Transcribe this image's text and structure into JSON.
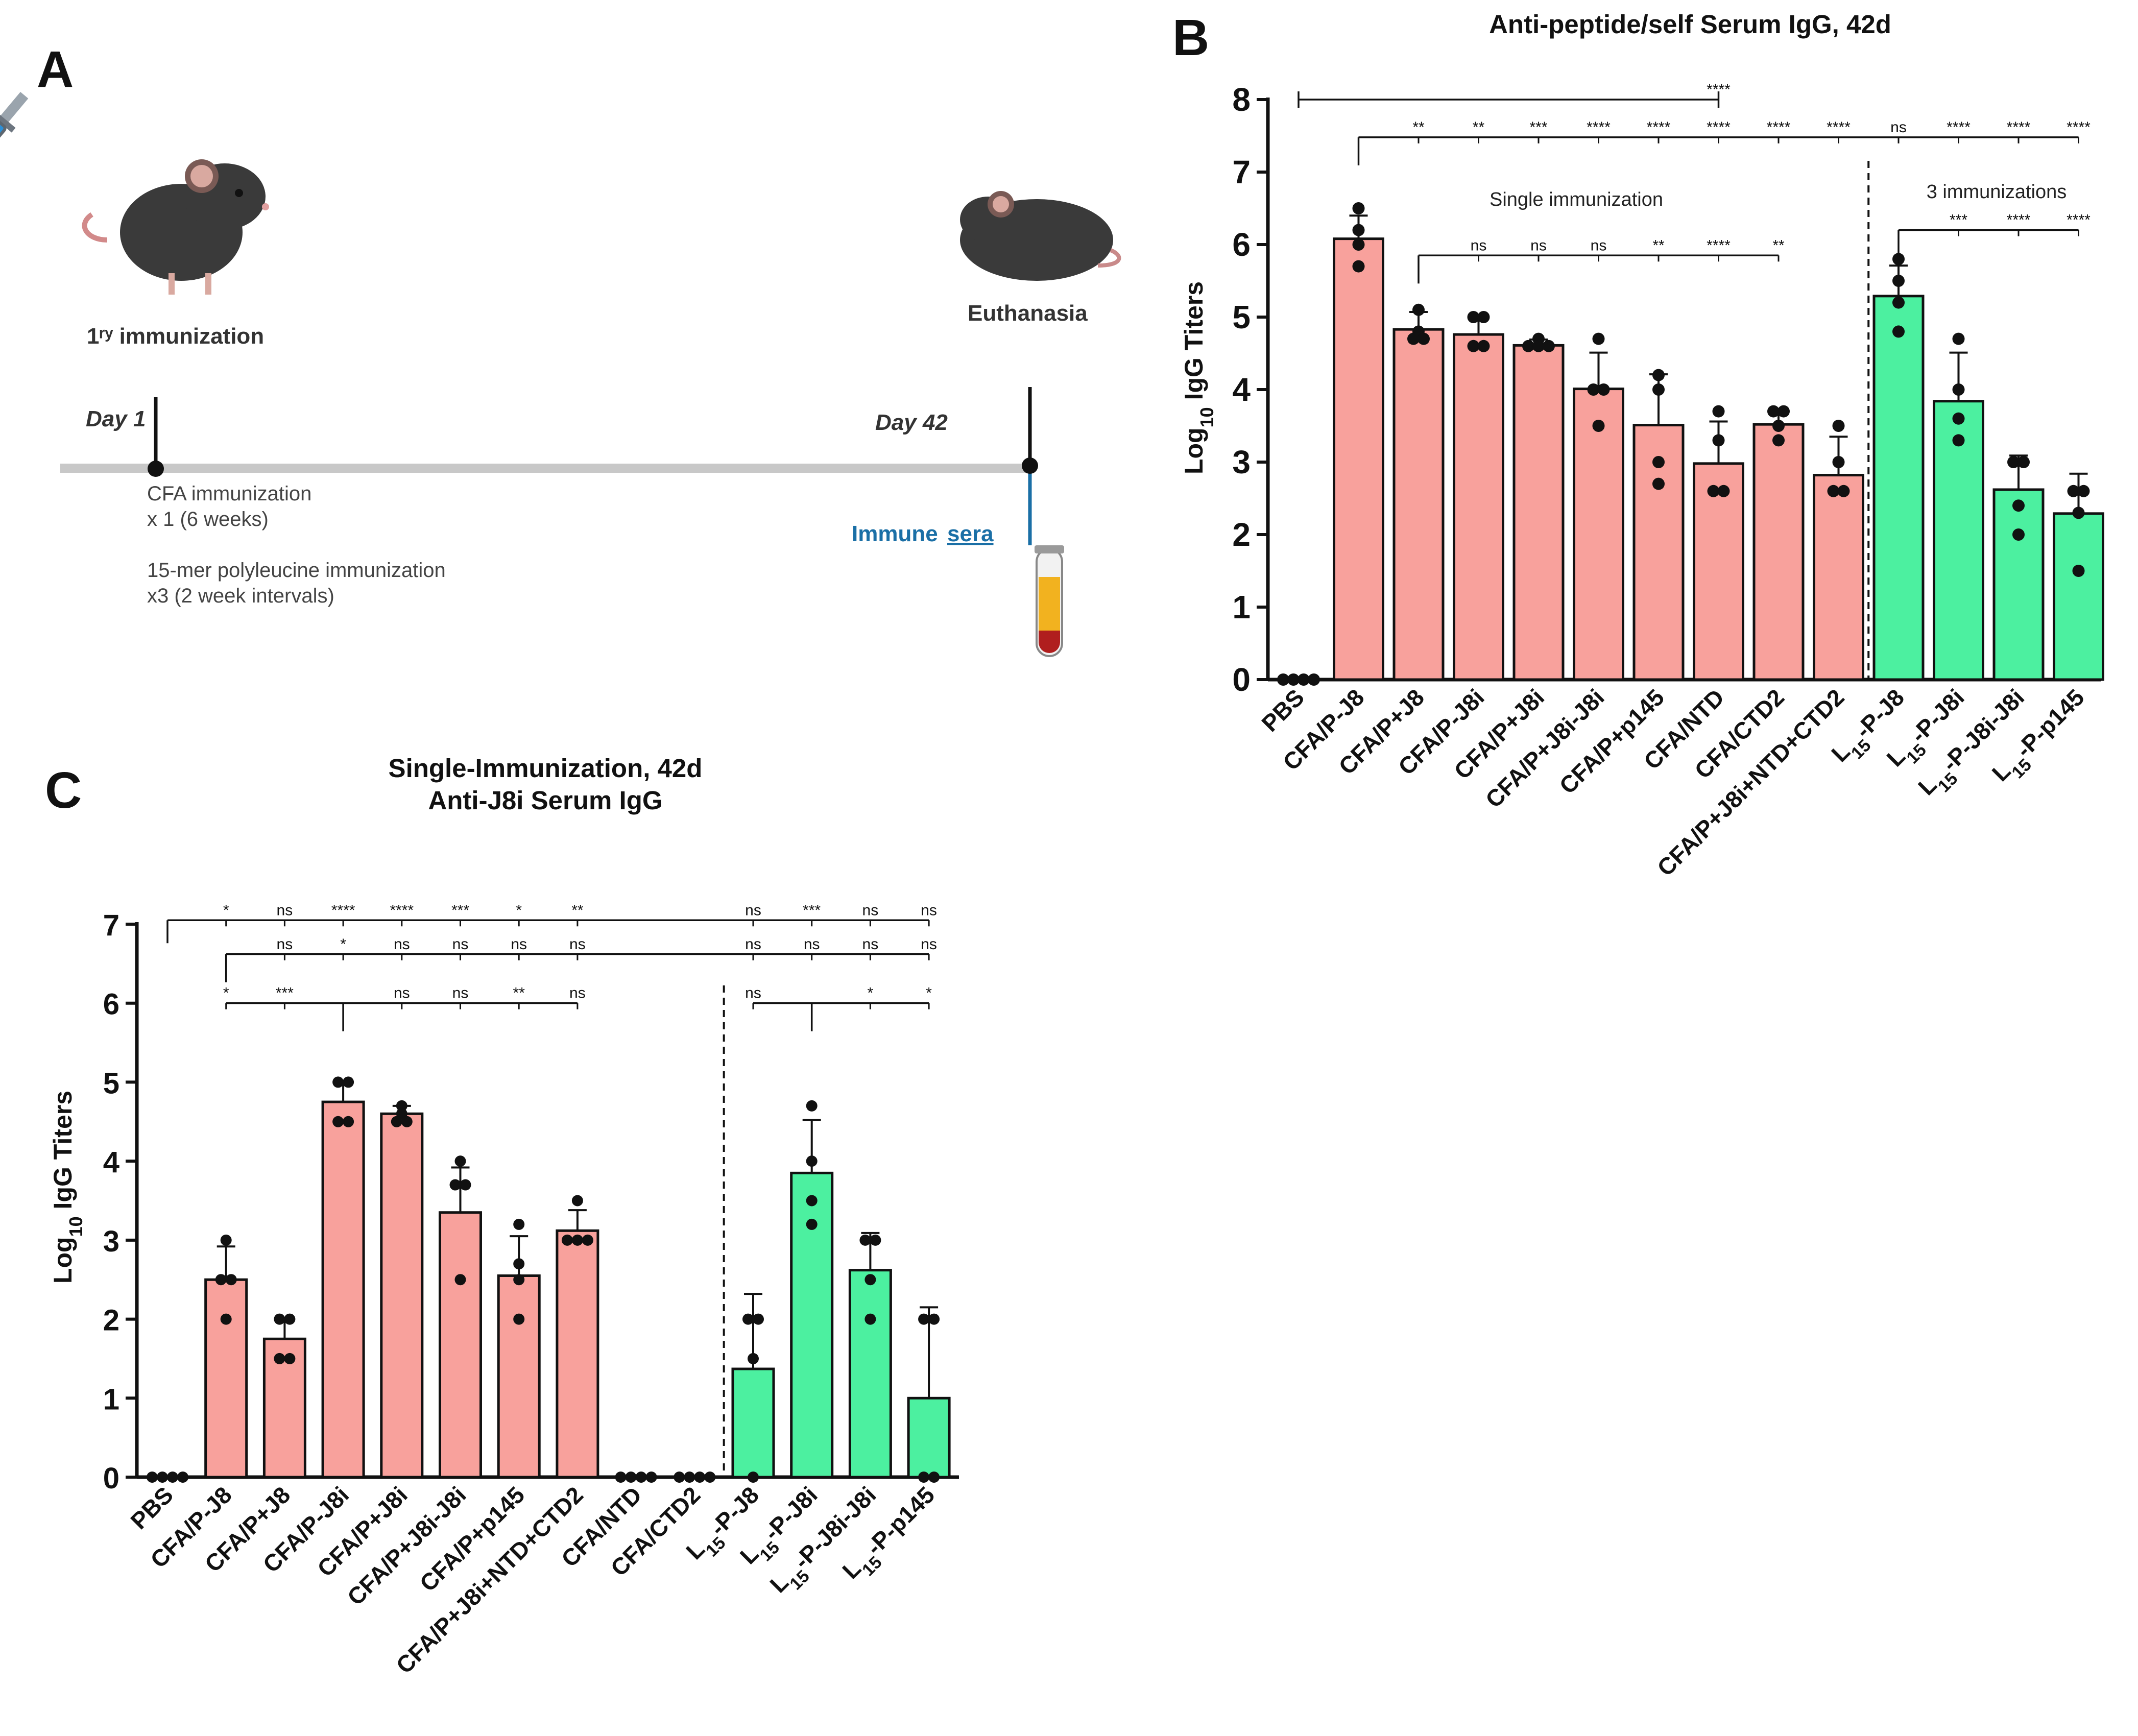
{
  "panel_a": {
    "letter": "A",
    "primary_immunization_label": "1ʳʸ immunization",
    "euthanasia_label": "Euthanasia",
    "day1_label": "Day 1",
    "day42_label": "Day 42",
    "cfa_line1": "CFA immunization",
    "cfa_line2": "x 1 (6 weeks)",
    "poly_line1": "15-mer polyleucine immunization",
    "poly_line2": "x3 (2 week intervals)",
    "immune_label": "Immune",
    "sera_label": "sera",
    "timeline_color": "#c8c8c8",
    "sera_color": "#1a6fa6"
  },
  "colors": {
    "red_bar": "#f8a19c",
    "green_bar": "#4cf0a0",
    "text": "#111111"
  },
  "chart_data": [
    {
      "panel": "B",
      "type": "bar",
      "title": "Anti-peptide/self Serum IgG, 42d",
      "ylabel_prefix": "Log",
      "ylabel_sub": "10",
      "ylabel_suffix": " IgG Titers",
      "ylim": [
        0,
        8
      ],
      "yticks": [
        "0",
        "1",
        "2",
        "3",
        "4",
        "5",
        "6",
        "7",
        "8"
      ],
      "categories": [
        "PBS",
        "CFA/P-J8",
        "CFA/P+J8",
        "CFA/P-J8i",
        "CFA/P+J8i",
        "CFA/P+J8i-J8i",
        "CFA/P+p145",
        "CFA/NTD",
        "CFA/CTD2",
        "CFA/P+J8i+NTD+CTD2",
        "L15-P-J8",
        "L15-P-J8i",
        "L15-P-J8i-J8i",
        "L15-P-p145"
      ],
      "values": [
        0,
        6.08,
        4.83,
        4.76,
        4.61,
        4.01,
        3.51,
        2.98,
        3.52,
        2.82,
        5.29,
        3.84,
        2.62,
        2.29
      ],
      "errors": [
        0,
        0.32,
        0.24,
        0.25,
        0.08,
        0.5,
        0.7,
        0.58,
        0.18,
        0.53,
        0.42,
        0.67,
        0.47,
        0.55
      ],
      "groups": [
        "none",
        "red",
        "red",
        "red",
        "red",
        "red",
        "red",
        "red",
        "red",
        "red",
        "green",
        "green",
        "green",
        "green"
      ],
      "points": [
        [
          0,
          0,
          0,
          0
        ],
        [
          6.5,
          6.2,
          6.0,
          5.7
        ],
        [
          5.1,
          4.8,
          4.7,
          4.7
        ],
        [
          5.0,
          5.0,
          4.6,
          4.6
        ],
        [
          4.7,
          4.6,
          4.6,
          4.6
        ],
        [
          4.7,
          4.0,
          4.0,
          3.5
        ],
        [
          4.2,
          4.0,
          3.0,
          2.7
        ],
        [
          3.7,
          3.3,
          2.6,
          2.6
        ],
        [
          3.7,
          3.7,
          3.5,
          3.3
        ],
        [
          3.5,
          3.0,
          2.6,
          2.6
        ],
        [
          5.8,
          5.5,
          5.2,
          4.8
        ],
        [
          4.7,
          4.0,
          3.6,
          3.3
        ],
        [
          3.0,
          3.0,
          2.4,
          2.0
        ],
        [
          2.6,
          2.6,
          2.3,
          1.5
        ]
      ],
      "divider_after_index": 9,
      "annotations": [
        "Single immunization",
        "3 immunizations"
      ],
      "sig_rows": [
        {
          "level": 8.0,
          "anchor": 0,
          "marks": [
            [
              7,
              "****"
            ]
          ],
          "style": "span"
        },
        {
          "level": 7.48,
          "anchor": 1,
          "marks": [
            [
              2,
              "**"
            ],
            [
              3,
              "**"
            ],
            [
              4,
              "***"
            ],
            [
              5,
              "****"
            ],
            [
              6,
              "****"
            ],
            [
              7,
              "****"
            ],
            [
              8,
              "****"
            ],
            [
              9,
              "****"
            ],
            [
              10,
              "ns"
            ],
            [
              11,
              "****"
            ],
            [
              12,
              "****"
            ],
            [
              13,
              "****"
            ]
          ]
        },
        {
          "level": 5.85,
          "anchor": 2,
          "marks": [
            [
              3,
              "ns"
            ],
            [
              4,
              "ns"
            ],
            [
              5,
              "ns"
            ],
            [
              6,
              "**"
            ],
            [
              7,
              "****"
            ],
            [
              8,
              "**"
            ]
          ]
        },
        {
          "level": 6.2,
          "anchor": 10,
          "marks": [
            [
              11,
              "***"
            ],
            [
              12,
              "****"
            ],
            [
              13,
              "****"
            ]
          ]
        }
      ]
    },
    {
      "panel": "C",
      "type": "bar",
      "title_line1": "Single-Immunization, 42d",
      "title_line2": "Anti-J8i Serum IgG",
      "ylabel_prefix": "Log",
      "ylabel_sub": "10",
      "ylabel_suffix": " IgG Titers",
      "ylim": [
        0,
        7
      ],
      "yticks": [
        "0",
        "1",
        "2",
        "3",
        "4",
        "5",
        "6",
        "7"
      ],
      "categories": [
        "PBS",
        "CFA/P-J8",
        "CFA/P+J8",
        "CFA/P-J8i",
        "CFA/P+J8i",
        "CFA/P+J8i-J8i",
        "CFA/P+p145",
        "CFA/P+J8i+NTD+CTD2",
        "CFA/NTD",
        "CFA/CTD2",
        "L15-P-J8",
        "L15-P-J8i",
        "L15-P-J8i-J8i",
        "L15-P-p145"
      ],
      "values": [
        0,
        2.5,
        1.75,
        4.75,
        4.6,
        3.35,
        2.55,
        3.12,
        0,
        0,
        1.37,
        3.85,
        2.62,
        1.0
      ],
      "errors": [
        0,
        0.42,
        0.25,
        0.25,
        0.1,
        0.57,
        0.5,
        0.26,
        0,
        0,
        0.95,
        0.67,
        0.47,
        1.15
      ],
      "groups": [
        "none",
        "red",
        "red",
        "red",
        "red",
        "red",
        "red",
        "red",
        "none",
        "none",
        "green",
        "green",
        "green",
        "green"
      ],
      "points": [
        [
          0,
          0,
          0,
          0
        ],
        [
          3.0,
          2.5,
          2.5,
          2.0
        ],
        [
          2.0,
          2.0,
          1.5,
          1.5
        ],
        [
          5.0,
          5.0,
          4.5,
          4.5
        ],
        [
          4.7,
          4.6,
          4.5,
          4.5
        ],
        [
          4.0,
          3.7,
          3.7,
          2.5
        ],
        [
          3.2,
          2.7,
          2.5,
          2.0
        ],
        [
          3.5,
          3.0,
          3.0,
          3.0
        ],
        [
          0,
          0,
          0,
          0
        ],
        [
          0,
          0,
          0,
          0
        ],
        [
          2.0,
          2.0,
          1.5,
          0
        ],
        [
          4.7,
          4.0,
          3.5,
          3.2
        ],
        [
          3.0,
          3.0,
          2.5,
          2.0
        ],
        [
          2.0,
          2.0,
          0,
          0
        ]
      ],
      "divider_after_index": 9,
      "sig_rows": [
        {
          "level": 7.05,
          "anchor": 0,
          "marks": [
            [
              1,
              "*"
            ],
            [
              2,
              "ns"
            ],
            [
              3,
              "****"
            ],
            [
              4,
              "****"
            ],
            [
              5,
              "***"
            ],
            [
              6,
              "*"
            ],
            [
              7,
              "**"
            ],
            [
              10,
              "ns"
            ],
            [
              11,
              "***"
            ],
            [
              12,
              "ns"
            ],
            [
              13,
              "ns"
            ]
          ],
          "style": "plain"
        },
        {
          "level": 6.62,
          "anchor": 1,
          "marks": [
            [
              2,
              "ns"
            ],
            [
              3,
              "*"
            ],
            [
              4,
              "ns"
            ],
            [
              5,
              "ns"
            ],
            [
              6,
              "ns"
            ],
            [
              7,
              "ns"
            ],
            [
              10,
              "ns"
            ],
            [
              11,
              "ns"
            ],
            [
              12,
              "ns"
            ],
            [
              13,
              "ns"
            ]
          ]
        },
        {
          "level": 6.0,
          "anchor": 3,
          "marks": [
            [
              1,
              "*"
            ],
            [
              2,
              "***"
            ],
            [
              4,
              "ns"
            ],
            [
              5,
              "ns"
            ],
            [
              6,
              "**"
            ],
            [
              7,
              "ns"
            ]
          ]
        },
        {
          "level": 6.0,
          "anchor": 11,
          "marks": [
            [
              10,
              "ns"
            ],
            [
              12,
              "*"
            ],
            [
              13,
              "*"
            ]
          ]
        }
      ]
    }
  ]
}
